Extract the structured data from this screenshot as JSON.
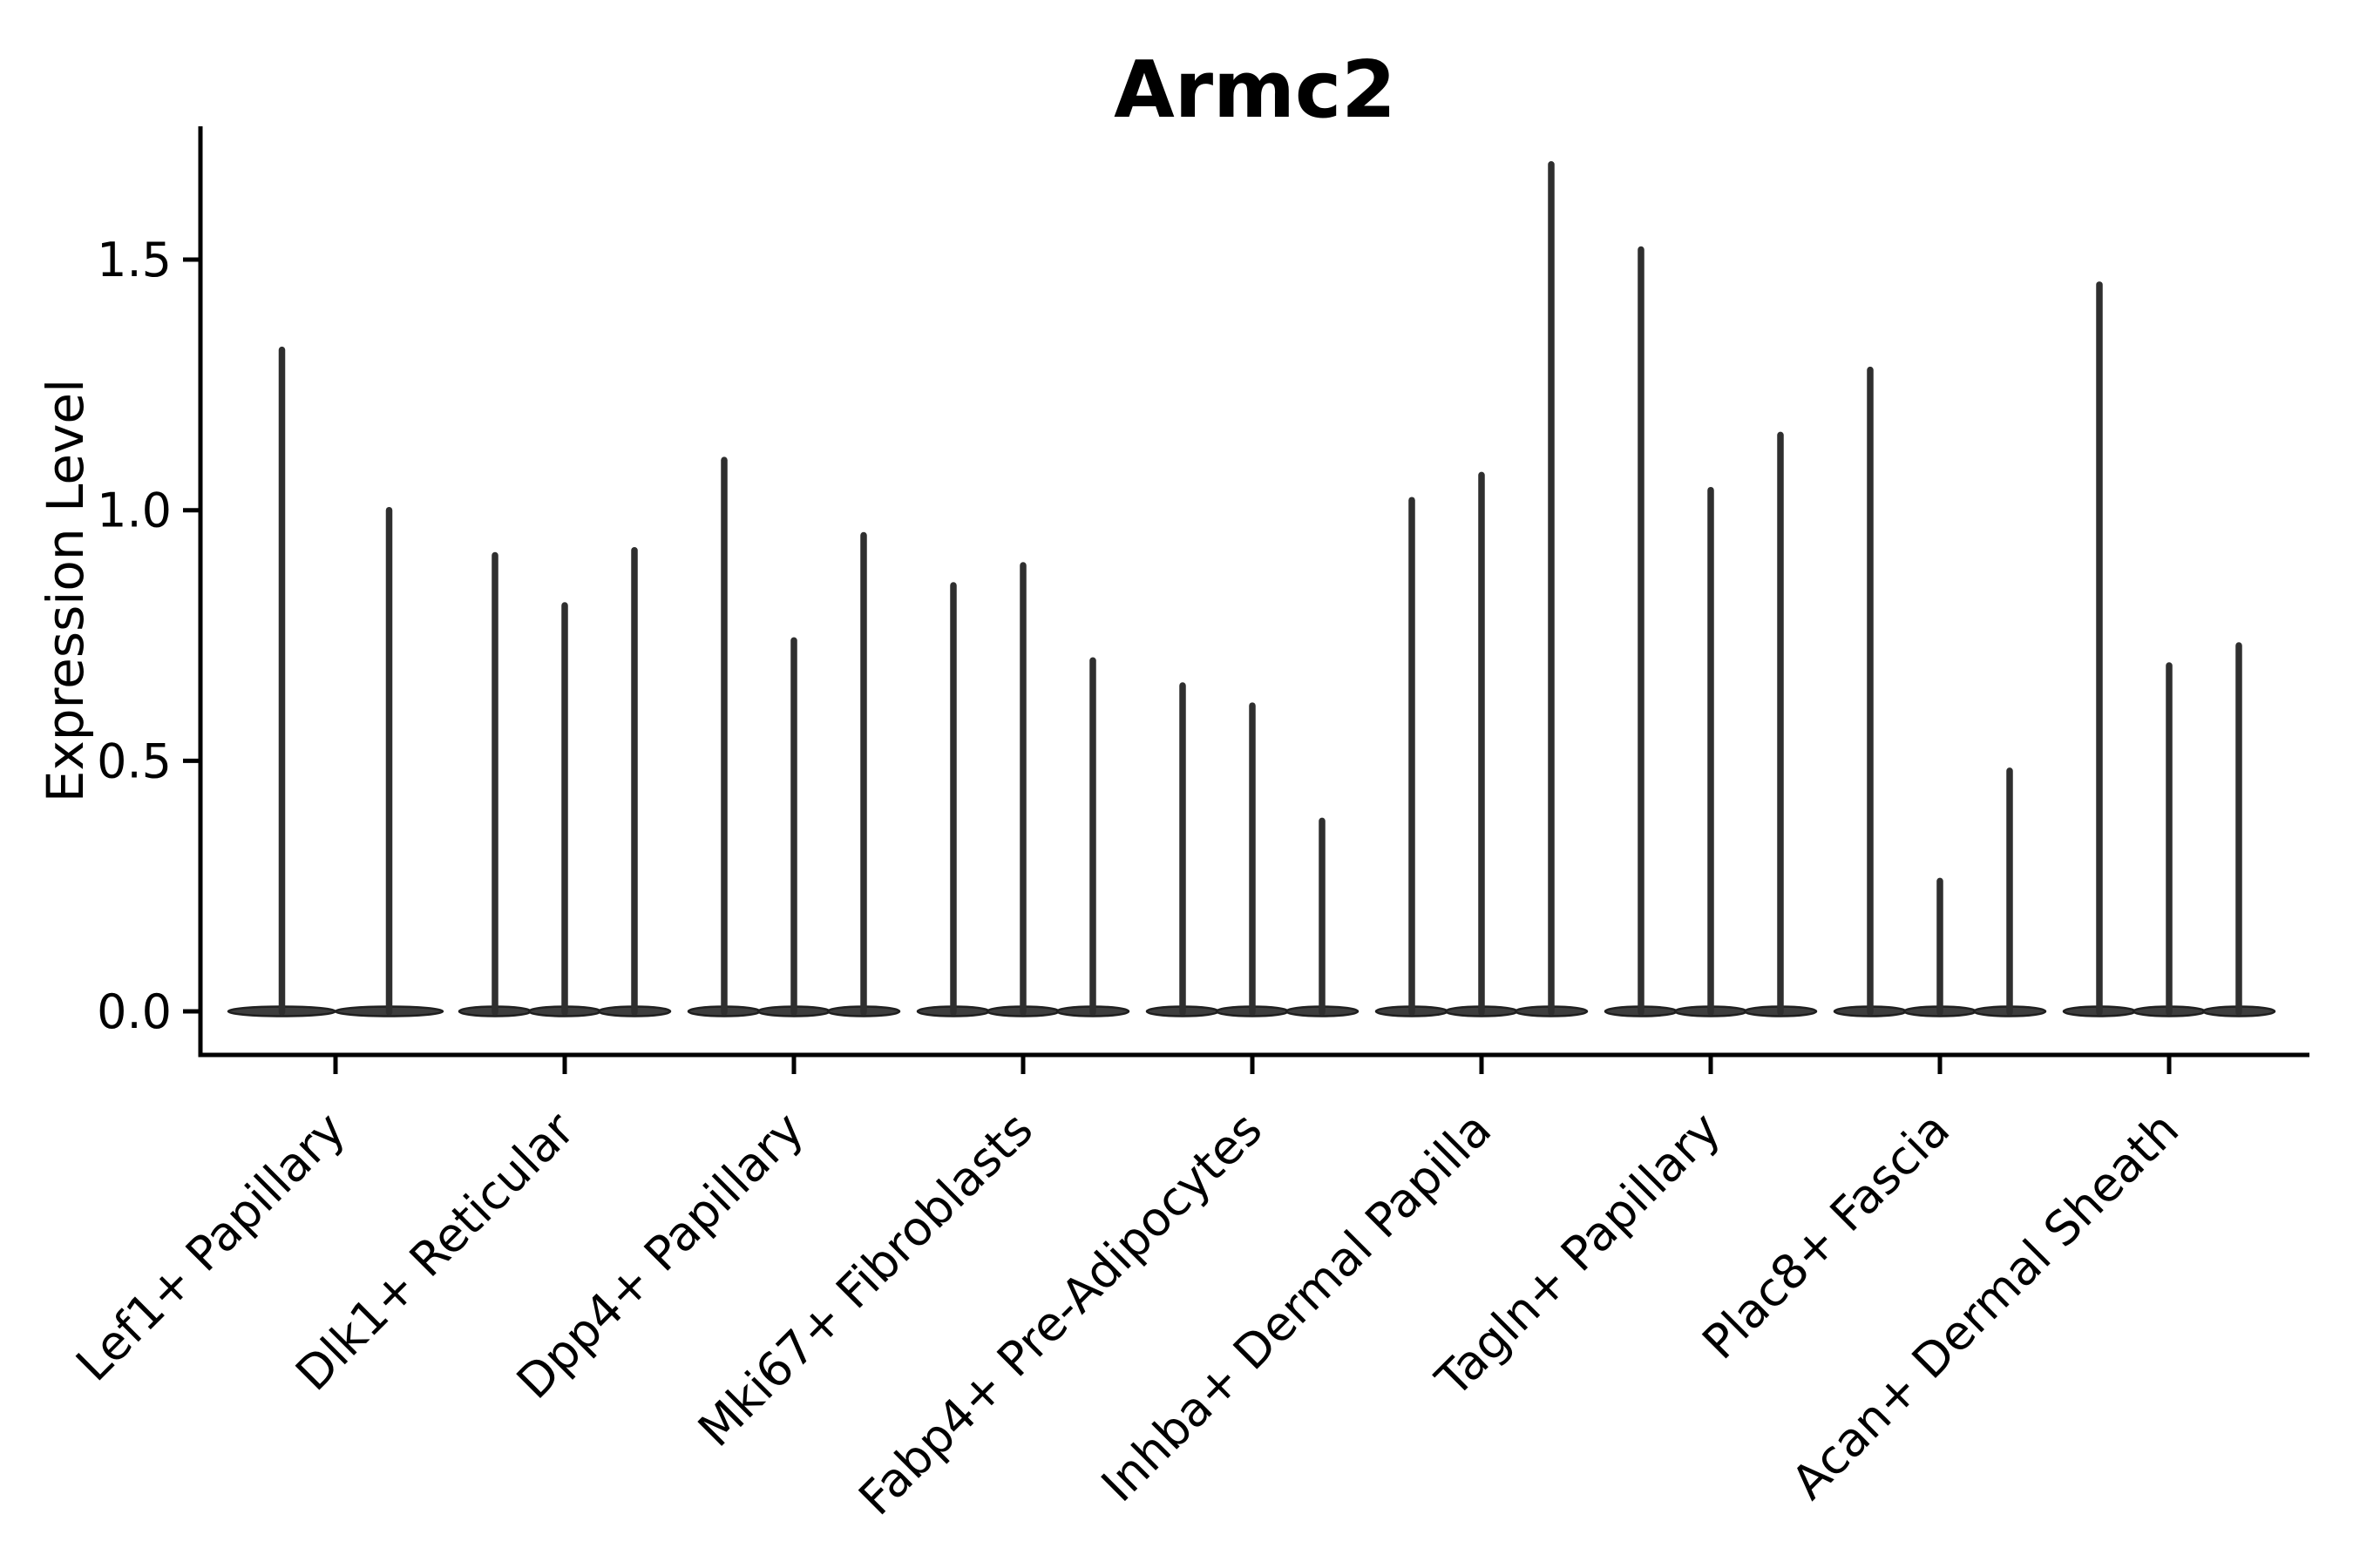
{
  "chart_data": {
    "type": "violin",
    "title": "Armc2",
    "xlabel": "",
    "ylabel": "Expression Level",
    "yticks": [
      "0.0",
      "0.5",
      "1.0",
      "1.5"
    ],
    "ytick_values": [
      0.0,
      0.5,
      1.0,
      1.5
    ],
    "ylim": [
      -0.09,
      1.77
    ],
    "grid": false,
    "legend": "none",
    "style": "zero-inflated expression violins: wide flat bulge at 0 with a thin spike rising to the maximum value; multiple violins per cell-type group",
    "categories": [
      "Lef1+ Papillary",
      "Dlk1+ Reticular",
      "Dpp4+ Papillary",
      "Mki67+ Fibroblasts",
      "Fabp4+ Pre-Adipocytes",
      "Inhba+ Dermal Papilla",
      "Tagln+ Papillary",
      "Plac8+ Fascia",
      "Acan+ Dermal Sheath"
    ],
    "groups": [
      {
        "category": "Lef1+ Papillary",
        "violin_max_values": [
          1.32,
          1.0
        ]
      },
      {
        "category": "Dlk1+ Reticular",
        "violin_max_values": [
          0.91,
          0.81,
          0.92
        ]
      },
      {
        "category": "Dpp4+ Papillary",
        "violin_max_values": [
          1.1,
          0.74,
          0.95
        ]
      },
      {
        "category": "Mki67+ Fibroblasts",
        "violin_max_values": [
          0.85,
          0.89,
          0.7
        ]
      },
      {
        "category": "Fabp4+ Pre-Adipocytes",
        "violin_max_values": [
          0.65,
          0.61,
          0.38
        ]
      },
      {
        "category": "Inhba+ Dermal Papilla",
        "violin_max_values": [
          1.02,
          1.07,
          1.69
        ]
      },
      {
        "category": "Tagln+ Papillary",
        "violin_max_values": [
          1.52,
          1.04,
          1.15
        ]
      },
      {
        "category": "Plac8+ Fascia",
        "violin_max_values": [
          1.28,
          0.26,
          0.48
        ]
      },
      {
        "category": "Acan+ Dermal Sheath",
        "violin_max_values": [
          1.45,
          0.69,
          0.73
        ]
      }
    ],
    "colors": {
      "violin_spike": "#2f2f2f",
      "violin_base_fill": "#3d3d3d",
      "violin_base_edge": "#1f1f1f",
      "axis": "#000000",
      "text": "#000000",
      "background": "#ffffff"
    }
  }
}
